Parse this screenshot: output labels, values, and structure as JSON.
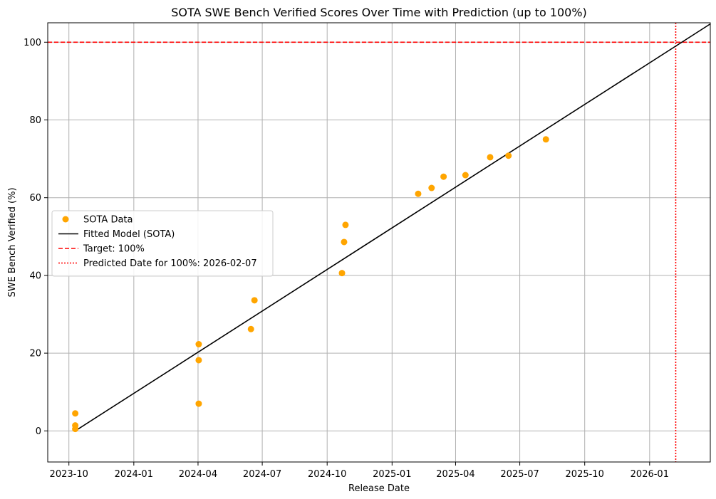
{
  "chart_data": {
    "type": "scatter",
    "title": "SOTA SWE Bench Verified Scores Over Time with Prediction (up to 100%)",
    "xlabel": "Release Date",
    "ylabel": "SWE Bench Verified (%)",
    "x_axis_type": "date",
    "xlim": [
      "2023-09-01",
      "2026-03-28"
    ],
    "ylim": [
      -8,
      105
    ],
    "grid": true,
    "legend_position": "center-left",
    "x_ticks": [
      "2023-10",
      "2024-01",
      "2024-04",
      "2024-07",
      "2024-10",
      "2025-01",
      "2025-04",
      "2025-07",
      "2025-10",
      "2026-01"
    ],
    "y_ticks": [
      0,
      20,
      40,
      60,
      80,
      100
    ],
    "colors": {
      "data": "#FFA500",
      "fit": "#000000",
      "target": "#FF0000",
      "prediction": "#FF0000",
      "grid": "#b0b0b0"
    },
    "series": [
      {
        "name": "SOTA Data",
        "kind": "scatter",
        "x": [
          "2023-10-10",
          "2023-10-10",
          "2023-10-10",
          "2024-04-02",
          "2024-04-02",
          "2024-04-02",
          "2024-06-15",
          "2024-06-20",
          "2024-10-22",
          "2024-10-25",
          "2024-10-27",
          "2025-02-07",
          "2025-02-26",
          "2025-03-15",
          "2025-04-15",
          "2025-05-20",
          "2025-06-15",
          "2025-08-07"
        ],
        "y": [
          4.5,
          1.4,
          0.5,
          22.3,
          18.2,
          7.0,
          26.2,
          33.6,
          40.6,
          48.6,
          53.0,
          61.0,
          62.5,
          65.4,
          65.8,
          70.4,
          70.8,
          75.0
        ]
      },
      {
        "name": "Fitted Model (SOTA)",
        "kind": "line",
        "x": [
          "2023-10-10",
          "2026-03-28"
        ],
        "y": [
          0.0,
          104.7
        ]
      },
      {
        "name": "Target: 100%",
        "kind": "hline",
        "y": 100
      },
      {
        "name": "Predicted Date for 100%: 2026-02-07",
        "kind": "vline",
        "x": "2026-02-07"
      }
    ]
  }
}
